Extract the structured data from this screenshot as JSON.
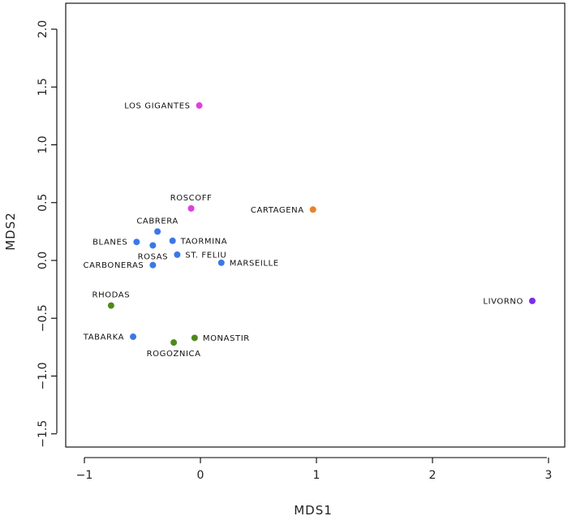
{
  "chart_data": {
    "type": "scatter",
    "title": "",
    "xlabel": "MDS1",
    "ylabel": "MDS2",
    "xlim": [
      -1.1,
      3.1
    ],
    "ylim": [
      -1.6,
      2.1
    ],
    "xticks": [
      -1,
      0,
      1,
      2,
      3
    ],
    "xtick_labels": [
      "−1",
      "0",
      "1",
      "2",
      "3"
    ],
    "yticks": [
      -1.5,
      -1.0,
      -0.5,
      0.0,
      0.5,
      1.0,
      1.5,
      2.0
    ],
    "ytick_labels": [
      "−1.5",
      "−1.0",
      "−0.5",
      "0.0",
      "0.5",
      "1.0",
      "1.5",
      "2.0"
    ],
    "grid": false,
    "points": [
      {
        "label": "LOS GIGANTES",
        "x": -0.01,
        "y": 1.34,
        "color": "#e040e0",
        "label_side": "left"
      },
      {
        "label": "ROSCOFF",
        "x": -0.08,
        "y": 0.45,
        "color": "#e040e0",
        "label_side": "above"
      },
      {
        "label": "CARTAGENA",
        "x": 0.97,
        "y": 0.44,
        "color": "#e8822a",
        "label_side": "left"
      },
      {
        "label": "CABRERA",
        "x": -0.37,
        "y": 0.25,
        "color": "#3b78e7",
        "label_side": "above"
      },
      {
        "label": "BLANES",
        "x": -0.55,
        "y": 0.16,
        "color": "#3b78e7",
        "label_side": "left"
      },
      {
        "label": "ROSAS",
        "x": -0.41,
        "y": 0.13,
        "color": "#3b78e7",
        "label_side": "below"
      },
      {
        "label": "TAORMINA",
        "x": -0.24,
        "y": 0.17,
        "color": "#3b78e7",
        "label_side": "right"
      },
      {
        "label": "ST. FELIU",
        "x": -0.2,
        "y": 0.05,
        "color": "#3b78e7",
        "label_side": "right"
      },
      {
        "label": "MARSEILLE",
        "x": 0.18,
        "y": -0.02,
        "color": "#3b78e7",
        "label_side": "right"
      },
      {
        "label": "CARBONERAS",
        "x": -0.41,
        "y": -0.04,
        "color": "#3b78e7",
        "label_side": "left"
      },
      {
        "label": "RHODAS",
        "x": -0.77,
        "y": -0.39,
        "color": "#4e8a1a",
        "label_side": "above"
      },
      {
        "label": "LIVORNO",
        "x": 2.86,
        "y": -0.35,
        "color": "#7b2ee6",
        "label_side": "left"
      },
      {
        "label": "TABARKA",
        "x": -0.58,
        "y": -0.66,
        "color": "#3b78e7",
        "label_side": "left"
      },
      {
        "label": "MONASTIR",
        "x": -0.05,
        "y": -0.67,
        "color": "#4e8a1a",
        "label_side": "right"
      },
      {
        "label": "ROGOZNICA",
        "x": -0.23,
        "y": -0.71,
        "color": "#4e8a1a",
        "label_side": "below"
      }
    ]
  }
}
